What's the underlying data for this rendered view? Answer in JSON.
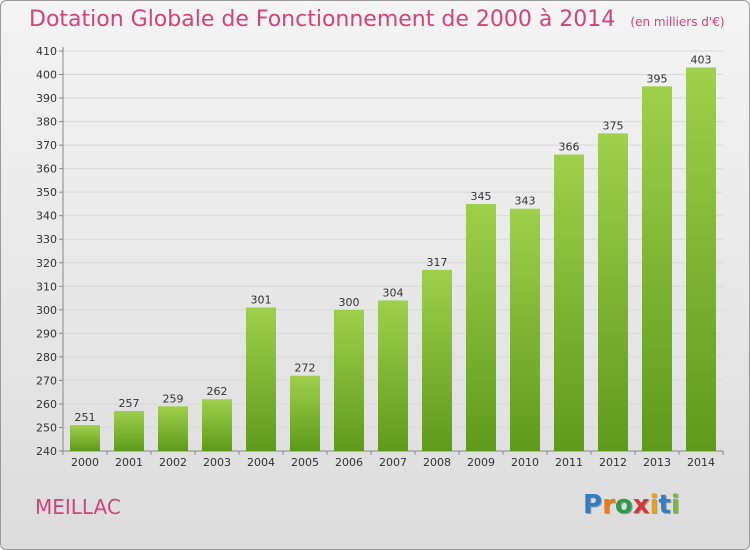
{
  "title": "Dotation Globale de Fonctionnement de 2000 à 2014",
  "subtitle": "(en milliers d'€)",
  "commune": "MEILLAC",
  "logo": {
    "letters": [
      "P",
      "r",
      "o",
      "x",
      "i",
      "t",
      "i"
    ],
    "colors": [
      "#2f7fc8",
      "#e87a1e",
      "#2f9a48",
      "#d23a3a",
      "#e8a21e",
      "#2f7fc8",
      "#7ab83c"
    ]
  },
  "colors": {
    "bar_top": "#9fd04c",
    "bar_bottom": "#5f9a1a",
    "title": "#d0447c"
  },
  "chart_data": {
    "type": "bar",
    "categories": [
      "2000",
      "2001",
      "2002",
      "2003",
      "2004",
      "2005",
      "2006",
      "2007",
      "2008",
      "2009",
      "2010",
      "2011",
      "2012",
      "2013",
      "2014"
    ],
    "values": [
      251,
      257,
      259,
      262,
      301,
      272,
      300,
      304,
      317,
      345,
      343,
      366,
      375,
      395,
      403
    ],
    "ylim": [
      240,
      410
    ],
    "yticks": [
      240,
      250,
      260,
      270,
      280,
      290,
      300,
      310,
      320,
      330,
      340,
      350,
      360,
      370,
      380,
      390,
      400,
      410
    ],
    "grid": true,
    "data_labels": true
  }
}
